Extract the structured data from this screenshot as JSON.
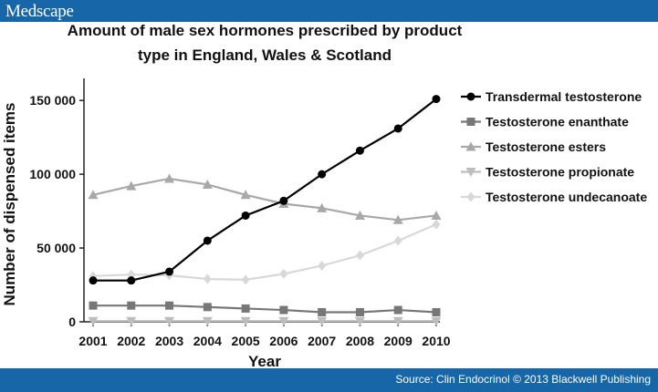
{
  "header": {
    "brand": "Medscape"
  },
  "footer": {
    "source": "Source: Clin Endocrinol © 2013 Blackwell Publishing"
  },
  "chart_data": {
    "type": "line",
    "title_lines": [
      "Amount of male sex hormones prescribed by product",
      "type in England, Wales & Scotland"
    ],
    "xlabel": "Year",
    "ylabel": "Number of dispensed items",
    "x": [
      2001,
      2002,
      2003,
      2004,
      2005,
      2006,
      2007,
      2008,
      2009,
      2010
    ],
    "x_tick_labels": [
      "2001",
      "2002",
      "2003",
      "2004",
      "2005",
      "2006",
      "2007",
      "2008",
      "2009",
      "2010"
    ],
    "ylim": [
      0,
      160000
    ],
    "y_ticks": [
      0,
      50000,
      100000,
      150000
    ],
    "y_tick_labels": [
      "0",
      "50 000",
      "100 000",
      "150 000"
    ],
    "grid": false,
    "legend_position": "right",
    "series": [
      {
        "name": "Transdermal testosterone",
        "color": "#000000",
        "marker": "circle",
        "values": [
          28000,
          28000,
          34000,
          55000,
          72000,
          82000,
          100000,
          116000,
          131000,
          151000
        ]
      },
      {
        "name": "Testosterone enanthate",
        "color": "#777777",
        "marker": "square",
        "values": [
          11000,
          11000,
          11000,
          10000,
          9000,
          8000,
          6500,
          6500,
          8000,
          6500
        ]
      },
      {
        "name": "Testosterone esters",
        "color": "#a8a8a8",
        "marker": "triangle-up",
        "values": [
          86000,
          92000,
          97000,
          93000,
          86000,
          80000,
          77000,
          72000,
          69000,
          72000
        ]
      },
      {
        "name": "Testosterone propionate",
        "color": "#bdbdbd",
        "marker": "triangle-down",
        "values": [
          500,
          500,
          500,
          500,
          500,
          500,
          500,
          500,
          500,
          500
        ]
      },
      {
        "name": "Testosterone undecanoate",
        "color": "#d8d8d8",
        "marker": "diamond",
        "values": [
          31000,
          32000,
          31500,
          29000,
          28500,
          32500,
          38000,
          45000,
          55000,
          66000
        ]
      }
    ]
  }
}
